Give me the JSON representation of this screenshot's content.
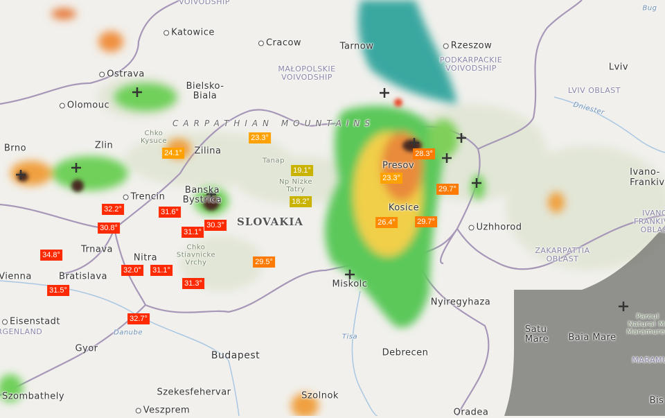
{
  "map": {
    "cities": [
      "Katowice",
      "Cracow",
      "Tarnow",
      "Rzeszow",
      "Ostrava",
      "Bielsko-\nBiala",
      "Olomouc",
      "Brno",
      "Zlin",
      "Zilina",
      "Trencin",
      "Banska\nBystrica",
      "Trnava",
      "Nitra",
      "Vienna",
      "Bratislava",
      "Eisenstadt",
      "Gyor",
      "Budapest",
      "Szekesfehervar",
      "Veszprem",
      "Szombathely",
      "Szolnok",
      "Miskolc",
      "Nyiregyhaza",
      "Debrecen",
      "Oradea",
      "Kosice",
      "Presov",
      "Uzhhorod",
      "Lviv",
      "Ivano-\nFrankivsk",
      "Satu\nMare",
      "Baia Mare",
      "Bis"
    ],
    "regions": [
      "VOIVODSHIP",
      "MAŁOPOLSKIE\nVOIVODSHIP",
      "PODKARPACKIE\nVOIVODSHIP",
      "LVIV OBLAST",
      "ZAKARPATTIA\nOBLAST",
      "IVANO-\nFRANKIVSK\nOBLAST",
      "BURGENLAND",
      "MARAMURES"
    ],
    "parks": [
      "Chko\nKysuce",
      "Tanap",
      "Np Nizke\nTatry",
      "Chko\nStiavnicke\nVrchy",
      "Parcul\nNatural M.\nMaramures"
    ],
    "rivers": [
      "Tisa",
      "Danube",
      "Dniester",
      "Bug"
    ],
    "country": "SLOVAKIA",
    "mountains": "CARPATHIAN MOUNTAINS",
    "temperatures": [
      "23.3°",
      "24.1°",
      "19.1°",
      "18.2°",
      "32.2°",
      "31.6°",
      "30.8°",
      "31.1°",
      "30.3°",
      "34.8°",
      "32.0°",
      "31.1°",
      "31.5°",
      "31.3°",
      "29.5°",
      "32.7°",
      "28.3°",
      "23.3°",
      "29.7°",
      "26.4°",
      "29.7°"
    ],
    "icons": {
      "lightning": "lightning-strike-icon",
      "city": "city-dot-icon"
    },
    "colors": {
      "hot": "#ff2a00",
      "warm": "#ff7a00",
      "mild": "#ffa200",
      "cool": "#c9b200",
      "radar_light": "#4fc84f",
      "radar_mid": "#f2d14a",
      "radar_high": "#e8732f",
      "radar_extreme": "#4a2a22",
      "no_coverage": "#6b6b66"
    }
  }
}
